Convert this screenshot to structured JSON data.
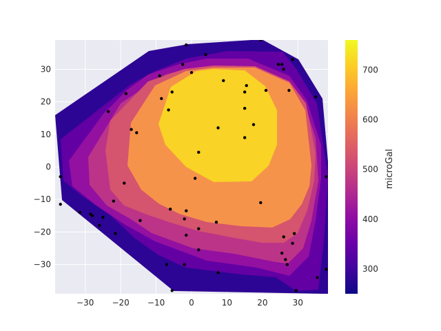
{
  "chart_data": {
    "type": "contour",
    "title": "",
    "xlabel": "",
    "ylabel": "",
    "xlim": [
      -38.5,
      38.5
    ],
    "ylim": [
      -39,
      39
    ],
    "x_ticks": [
      -30,
      -20,
      -10,
      0,
      10,
      20,
      30
    ],
    "y_ticks": [
      -30,
      -20,
      -10,
      0,
      10,
      20,
      30
    ],
    "grid": true,
    "background": "#eaeaf2",
    "colormap": "plasma",
    "colorbar": {
      "label": "microGal",
      "range": [
        250,
        760
      ],
      "ticks": [
        300,
        400,
        500,
        600,
        700
      ]
    },
    "levels": [
      {
        "value": 300,
        "color": "#2d0594"
      },
      {
        "value": 350,
        "color": "#6200a4"
      },
      {
        "value": 400,
        "color": "#9410a1"
      },
      {
        "value": 450,
        "color": "#bb3488"
      },
      {
        "value": 500,
        "color": "#d5546e"
      },
      {
        "value": 550,
        "color": "#e0625f"
      },
      {
        "value": 620,
        "color": "#f6934a"
      },
      {
        "value": 700,
        "color": "#f9d325"
      }
    ],
    "stations": [
      [
        -1.5,
        37.5
      ],
      [
        4,
        34.5
      ],
      [
        19.5,
        39
      ],
      [
        28.5,
        33
      ],
      [
        24.5,
        31.5
      ],
      [
        25.5,
        31.5
      ],
      [
        26,
        30
      ],
      [
        -2.5,
        31.5
      ],
      [
        0,
        29
      ],
      [
        -9,
        28
      ],
      [
        9,
        26.5
      ],
      [
        15.5,
        25
      ],
      [
        21,
        23.5
      ],
      [
        27.5,
        23.5
      ],
      [
        35,
        21.5
      ],
      [
        -5.5,
        23
      ],
      [
        15,
        23
      ],
      [
        -18.5,
        22.5
      ],
      [
        -8.5,
        21
      ],
      [
        15,
        18
      ],
      [
        -6.5,
        17.5
      ],
      [
        -23.5,
        17
      ],
      [
        17.5,
        13
      ],
      [
        7.5,
        12
      ],
      [
        -17,
        11.5
      ],
      [
        -15.5,
        10.5
      ],
      [
        15,
        9
      ],
      [
        2,
        4.5
      ],
      [
        1,
        -3.5
      ],
      [
        -37,
        -3
      ],
      [
        38,
        -3
      ],
      [
        -19,
        -5
      ],
      [
        -22,
        -10.5
      ],
      [
        19.5,
        -11
      ],
      [
        -37,
        -11.5
      ],
      [
        -6,
        -13
      ],
      [
        -1.5,
        -13.5
      ],
      [
        -31.5,
        -14
      ],
      [
        -28.5,
        -14.5
      ],
      [
        -28,
        -15
      ],
      [
        -25,
        -15.5
      ],
      [
        -2,
        -16
      ],
      [
        -14.5,
        -16.5
      ],
      [
        7,
        -17
      ],
      [
        -26,
        -18
      ],
      [
        2,
        -19
      ],
      [
        -21.5,
        -20.5
      ],
      [
        -1.5,
        -21
      ],
      [
        29,
        -20.5
      ],
      [
        26,
        -21.5
      ],
      [
        28.5,
        -23.5
      ],
      [
        2,
        -25.5
      ],
      [
        25.5,
        -26.5
      ],
      [
        26.5,
        -28.5
      ],
      [
        27,
        -30
      ],
      [
        -7,
        -30
      ],
      [
        -2,
        -30
      ],
      [
        38,
        -31.5
      ],
      [
        7.5,
        -32.5
      ],
      [
        35.5,
        -34
      ],
      [
        -5.5,
        -38
      ],
      [
        29.5,
        -38
      ]
    ]
  }
}
